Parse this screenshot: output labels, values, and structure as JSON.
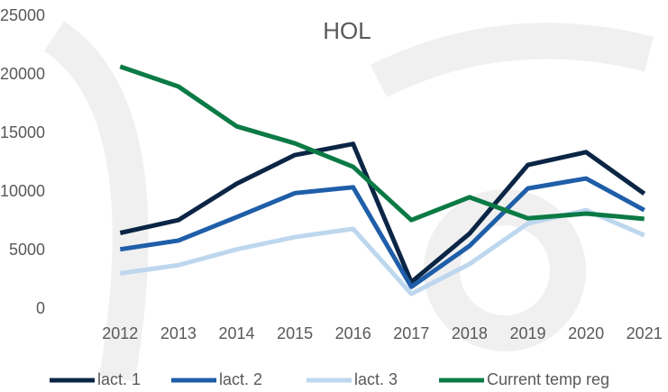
{
  "chart_data": {
    "type": "line",
    "title": "HOL",
    "categories": [
      "2012",
      "2013",
      "2014",
      "2015",
      "2016",
      "2017",
      "2018",
      "2019",
      "2020",
      "2021"
    ],
    "series": [
      {
        "name": "lact. 1",
        "color": "#0b2545",
        "values": [
          6500,
          7600,
          10700,
          13150,
          14100,
          2300,
          6450,
          12300,
          13400,
          9850
        ]
      },
      {
        "name": "lact. 2",
        "color": "#1f5ea8",
        "values": [
          5100,
          5850,
          7850,
          9900,
          10400,
          1900,
          5400,
          10300,
          11150,
          8450
        ]
      },
      {
        "name": "lact. 3",
        "color": "#bdd7ee",
        "values": [
          3050,
          3750,
          5100,
          6150,
          6850,
          1300,
          3850,
          7300,
          8450,
          6300
        ]
      },
      {
        "name": "Current temp reg",
        "color": "#0b7a45",
        "values": [
          20700,
          19000,
          15600,
          14150,
          12150,
          7600,
          9550,
          7750,
          8150,
          7700
        ]
      }
    ],
    "ylim": [
      0,
      25000
    ],
    "yticks": [
      0,
      5000,
      10000,
      15000,
      20000,
      25000
    ],
    "grid": false,
    "legend": "bottom"
  }
}
